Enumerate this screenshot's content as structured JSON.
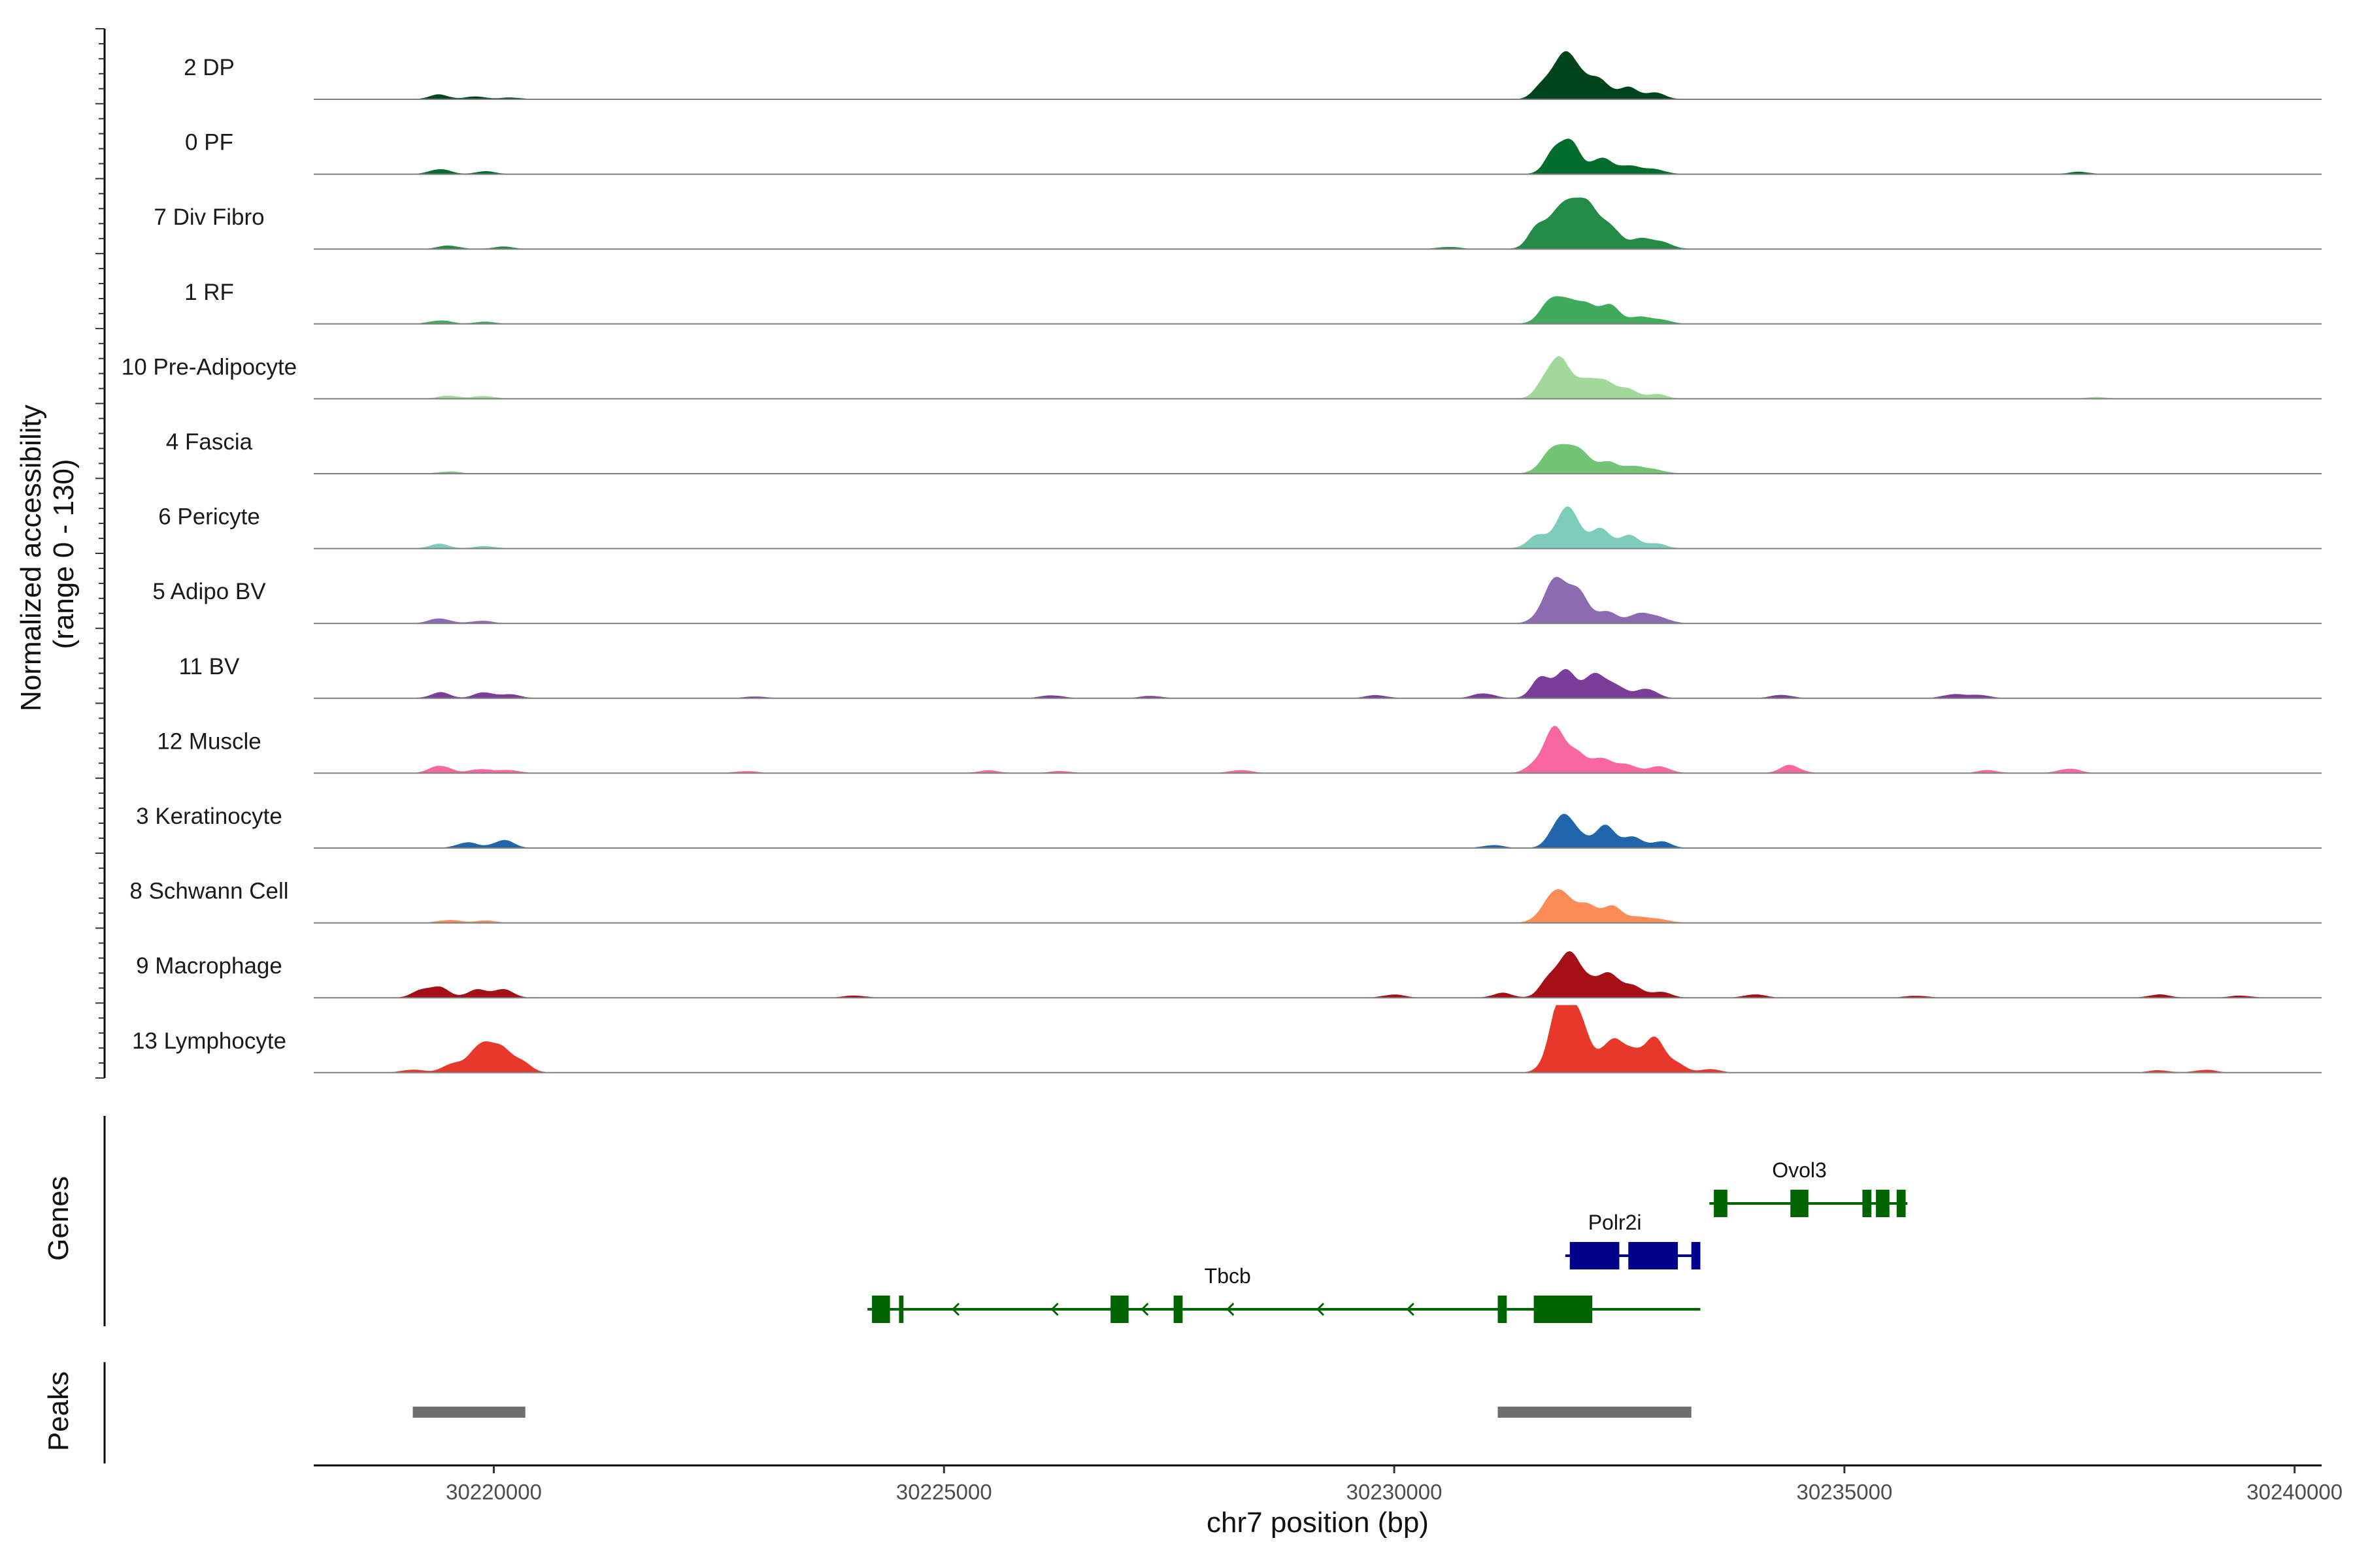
{
  "chart_data": {
    "type": "area",
    "title": "",
    "xlabel": "chr7 position (bp)",
    "ylabel": "Normalized accessibility\n(range 0 - 130)",
    "ylabel_lines": [
      "Normalized accessibility",
      "(range 0 - 130)"
    ],
    "ylim": [
      0,
      130
    ],
    "xlim": [
      30218000,
      30240300
    ],
    "x_ticks": [
      30220000,
      30225000,
      30230000,
      30235000,
      30240000
    ],
    "x_tick_labels": [
      "30220000",
      "30225000",
      "30230000",
      "30235000",
      "30240000"
    ],
    "panel_labels": {
      "genes": "Genes",
      "peaks": "Peaks"
    },
    "series": [
      {
        "name": "2 DP",
        "color": "#00441b",
        "peaks": [
          [
            30219400,
            8
          ],
          [
            30219800,
            5
          ],
          [
            30220200,
            3
          ],
          [
            30231700,
            45
          ],
          [
            30231900,
            58
          ],
          [
            30232050,
            40
          ],
          [
            30232300,
            38
          ],
          [
            30232600,
            20
          ],
          [
            30232900,
            12
          ]
        ]
      },
      {
        "name": "0 PF",
        "color": "#006d2c",
        "peaks": [
          [
            30219400,
            9
          ],
          [
            30219900,
            5
          ],
          [
            30231800,
            45
          ],
          [
            30231950,
            50
          ],
          [
            30232300,
            32
          ],
          [
            30232600,
            18
          ],
          [
            30232900,
            9
          ],
          [
            30237600,
            4
          ]
        ]
      },
      {
        "name": "7 Div Fibro",
        "color": "#238b45",
        "peaks": [
          [
            30219500,
            6
          ],
          [
            30220100,
            4
          ],
          [
            30230600,
            4
          ],
          [
            30231600,
            35
          ],
          [
            30231800,
            60
          ],
          [
            30232000,
            75
          ],
          [
            30232150,
            55
          ],
          [
            30232400,
            48
          ],
          [
            30232750,
            22
          ],
          [
            30233000,
            10
          ]
        ]
      },
      {
        "name": "1 RF",
        "color": "#41ab5d",
        "peaks": [
          [
            30219400,
            7
          ],
          [
            30219900,
            4
          ],
          [
            30231700,
            28
          ],
          [
            30231900,
            52
          ],
          [
            30232150,
            35
          ],
          [
            30232400,
            30
          ],
          [
            30232700,
            14
          ],
          [
            30232950,
            8
          ]
        ]
      },
      {
        "name": "10 Pre-Adipocyte",
        "color": "#a1d99b",
        "peaks": [
          [
            30219500,
            6
          ],
          [
            30219900,
            5
          ],
          [
            30231700,
            35
          ],
          [
            30231850,
            55
          ],
          [
            30232100,
            42
          ],
          [
            30232350,
            30
          ],
          [
            30232600,
            16
          ],
          [
            30232900,
            9
          ],
          [
            30237800,
            3
          ]
        ]
      },
      {
        "name": "4 Fascia",
        "color": "#74c476",
        "peaks": [
          [
            30219500,
            4
          ],
          [
            30231700,
            30
          ],
          [
            30231900,
            45
          ],
          [
            30232100,
            32
          ],
          [
            30232350,
            22
          ],
          [
            30232650,
            14
          ],
          [
            30232900,
            8
          ]
        ]
      },
      {
        "name": "6 Pericyte",
        "color": "#7dcdba",
        "peaks": [
          [
            30219400,
            8
          ],
          [
            30219900,
            4
          ],
          [
            30231600,
            25
          ],
          [
            30231850,
            42
          ],
          [
            30232000,
            45
          ],
          [
            30232300,
            38
          ],
          [
            30232600,
            22
          ],
          [
            30232900,
            10
          ]
        ]
      },
      {
        "name": "5 Adipo BV",
        "color": "#8c6bb1",
        "peaks": [
          [
            30219400,
            9
          ],
          [
            30219850,
            5
          ],
          [
            30231700,
            40
          ],
          [
            30231850,
            70
          ],
          [
            30232050,
            45
          ],
          [
            30232350,
            25
          ],
          [
            30232700,
            18
          ],
          [
            30232950,
            12
          ]
        ]
      },
      {
        "name": "11 BV",
        "color": "#7a3d9a",
        "peaks": [
          [
            30219400,
            10
          ],
          [
            30219900,
            12
          ],
          [
            30220200,
            6
          ],
          [
            30222900,
            3
          ],
          [
            30226200,
            6
          ],
          [
            30227300,
            4
          ],
          [
            30229800,
            6
          ],
          [
            30231000,
            10
          ],
          [
            30231650,
            38
          ],
          [
            30231900,
            52
          ],
          [
            30232200,
            40
          ],
          [
            30232450,
            30
          ],
          [
            30232800,
            18
          ],
          [
            30234300,
            6
          ],
          [
            30236200,
            8
          ],
          [
            30236500,
            6
          ]
        ]
      },
      {
        "name": "12 Muscle",
        "color": "#f768a1",
        "peaks": [
          [
            30219400,
            15
          ],
          [
            30219850,
            8
          ],
          [
            30220150,
            6
          ],
          [
            30222800,
            4
          ],
          [
            30225500,
            5
          ],
          [
            30226300,
            4
          ],
          [
            30228300,
            6
          ],
          [
            30231600,
            20
          ],
          [
            30231800,
            75
          ],
          [
            30232000,
            40
          ],
          [
            30232300,
            28
          ],
          [
            30232600,
            18
          ],
          [
            30232950,
            12
          ],
          [
            30234400,
            14
          ],
          [
            30236600,
            5
          ],
          [
            30237500,
            9
          ]
        ]
      },
      {
        "name": "3 Keratinocyte",
        "color": "#2166ac",
        "peaks": [
          [
            30219700,
            10
          ],
          [
            30220100,
            16
          ],
          [
            30231100,
            5
          ],
          [
            30231850,
            55
          ],
          [
            30232050,
            30
          ],
          [
            30232350,
            38
          ],
          [
            30232650,
            20
          ],
          [
            30232950,
            12
          ]
        ]
      },
      {
        "name": "8 Schwann Cell",
        "color": "#fc8d59",
        "peaks": [
          [
            30219500,
            6
          ],
          [
            30219900,
            4
          ],
          [
            30231700,
            35
          ],
          [
            30231900,
            48
          ],
          [
            30232150,
            32
          ],
          [
            30232400,
            30
          ],
          [
            30232700,
            12
          ],
          [
            30232950,
            7
          ]
        ]
      },
      {
        "name": "9 Macrophage",
        "color": "#a50f15",
        "peaks": [
          [
            30219200,
            12
          ],
          [
            30219400,
            18
          ],
          [
            30219800,
            14
          ],
          [
            30220100,
            16
          ],
          [
            30224000,
            4
          ],
          [
            30230000,
            6
          ],
          [
            30231200,
            8
          ],
          [
            30231750,
            45
          ],
          [
            30231950,
            60
          ],
          [
            30232150,
            38
          ],
          [
            30232400,
            45
          ],
          [
            30232650,
            18
          ],
          [
            30232950,
            12
          ],
          [
            30234000,
            6
          ],
          [
            30235800,
            4
          ],
          [
            30238500,
            6
          ],
          [
            30239400,
            4
          ]
        ]
      },
      {
        "name": "13 Lymphocyte",
        "color": "#e8382c",
        "peaks": [
          [
            30219100,
            6
          ],
          [
            30219550,
            18
          ],
          [
            30219850,
            60
          ],
          [
            30220100,
            38
          ],
          [
            30220300,
            20
          ],
          [
            30231800,
            90
          ],
          [
            30231950,
            100
          ],
          [
            30232100,
            45
          ],
          [
            30232400,
            68
          ],
          [
            30232650,
            40
          ],
          [
            30232900,
            55
          ],
          [
            30233100,
            20
          ],
          [
            30233500,
            6
          ],
          [
            30238500,
            4
          ],
          [
            30239000,
            5
          ]
        ]
      }
    ],
    "genes": [
      {
        "name": "Ovol3",
        "color": "#006400",
        "row": 0,
        "start": 30233500,
        "end": 30235700,
        "exons": [
          [
            30233550,
            30233700
          ],
          [
            30234400,
            30234600
          ],
          [
            30235200,
            30235300
          ],
          [
            30235350,
            30235500
          ],
          [
            30235580,
            30235680
          ]
        ],
        "thick": [
          30233550,
          30235680
        ],
        "arrows": [],
        "label_x": 30234500
      },
      {
        "name": "Polr2i",
        "color": "#00008b",
        "row": 1,
        "start": 30231900,
        "end": 30233400,
        "exons": [
          [
            30231950,
            30232500
          ],
          [
            30232600,
            30233150
          ],
          [
            30233300,
            30233400
          ]
        ],
        "thick": [
          30231950,
          30233400
        ],
        "arrows": [
          30232000
        ],
        "label_x": 30232450
      },
      {
        "name": "Tbcb",
        "color": "#006400",
        "row": 2,
        "start": 30224150,
        "end": 30233400,
        "exons": [
          [
            30224200,
            30224400
          ],
          [
            30224500,
            30224550
          ],
          [
            30226850,
            30227050
          ],
          [
            30227550,
            30227650
          ],
          [
            30231150,
            30231250
          ],
          [
            30231550,
            30232200
          ]
        ],
        "thick": [
          30224200,
          30232200
        ],
        "arrows": [
          30225100,
          30226200,
          30227200,
          30228150,
          30229150,
          30230150
        ],
        "label_x": 30228150
      }
    ],
    "peaks": [
      [
        30219100,
        30220350
      ],
      [
        30231150,
        30233300
      ]
    ]
  }
}
